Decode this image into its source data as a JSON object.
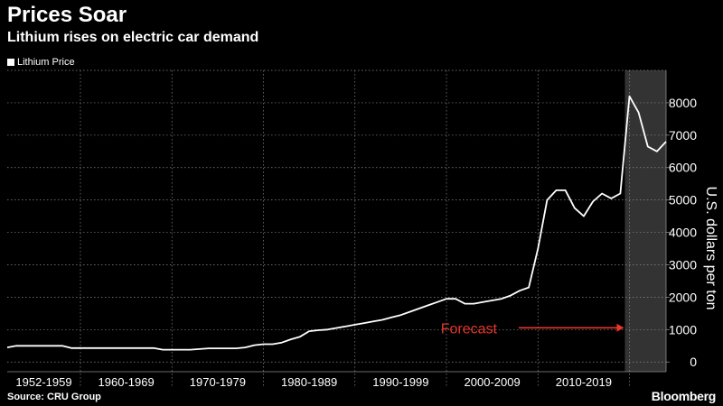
{
  "header": {
    "title": "Prices Soar",
    "subtitle": "Lithium rises on electric car demand"
  },
  "footer": {
    "source": "Source: CRU Group",
    "brand": "Bloomberg"
  },
  "colors": {
    "background": "#000000",
    "line": "#ffffff",
    "forecast_shade": "#333333",
    "forecast_arrow": "#e8362c"
  },
  "chart_data": {
    "type": "line",
    "title": "Prices Soar",
    "subtitle": "Lithium rises on electric car demand",
    "xlabel": "",
    "ylabel": "U.S. dollars per ton",
    "ylim": [
      -300,
      9000
    ],
    "yticks": [
      0,
      1000,
      2000,
      3000,
      4000,
      5000,
      6000,
      7000,
      8000
    ],
    "y_axis_side": "right",
    "grid": true,
    "legend_position": "top-left",
    "x_range": [
      1952,
      2024
    ],
    "categories": [
      "1952-1959",
      "1960-1969",
      "1970-1979",
      "1980-1989",
      "1990-1999",
      "2000-2009",
      "2010-2019"
    ],
    "category_spans": [
      [
        1952,
        1960
      ],
      [
        1960,
        1970
      ],
      [
        1970,
        1980
      ],
      [
        1980,
        1990
      ],
      [
        1990,
        2000
      ],
      [
        2000,
        2010
      ],
      [
        2010,
        2020
      ]
    ],
    "series": [
      {
        "name": "Lithium Price",
        "x": [
          1952,
          1953,
          1954,
          1955,
          1956,
          1957,
          1958,
          1959,
          1960,
          1961,
          1962,
          1963,
          1964,
          1965,
          1966,
          1967,
          1968,
          1969,
          1970,
          1971,
          1972,
          1973,
          1974,
          1975,
          1976,
          1977,
          1978,
          1979,
          1980,
          1981,
          1982,
          1983,
          1984,
          1985,
          1986,
          1987,
          1988,
          1989,
          1990,
          1991,
          1992,
          1993,
          1994,
          1995,
          1996,
          1997,
          1998,
          1999,
          2000,
          2001,
          2002,
          2003,
          2004,
          2005,
          2006,
          2007,
          2008,
          2009,
          2010,
          2011,
          2012,
          2013,
          2014,
          2015,
          2016,
          2017,
          2018,
          2019,
          2020,
          2021,
          2022,
          2023,
          2024
        ],
        "values": [
          450,
          500,
          500,
          500,
          500,
          500,
          500,
          430,
          430,
          430,
          430,
          430,
          430,
          430,
          430,
          430,
          430,
          380,
          380,
          380,
          380,
          400,
          420,
          420,
          420,
          420,
          450,
          520,
          550,
          550,
          600,
          700,
          780,
          950,
          980,
          1000,
          1050,
          1100,
          1150,
          1200,
          1250,
          1300,
          1380,
          1450,
          1550,
          1650,
          1750,
          1850,
          1950,
          1950,
          1800,
          1800,
          1850,
          1900,
          1950,
          2050,
          2200,
          2300,
          3500,
          5000,
          5300,
          5300,
          4750,
          4500,
          4950,
          5200,
          5050,
          5200,
          8200,
          7700,
          6650,
          6500,
          6800
        ]
      }
    ],
    "forecast": {
      "label": "Forecast",
      "x_start": 2019.5,
      "x_end": 2024
    }
  }
}
